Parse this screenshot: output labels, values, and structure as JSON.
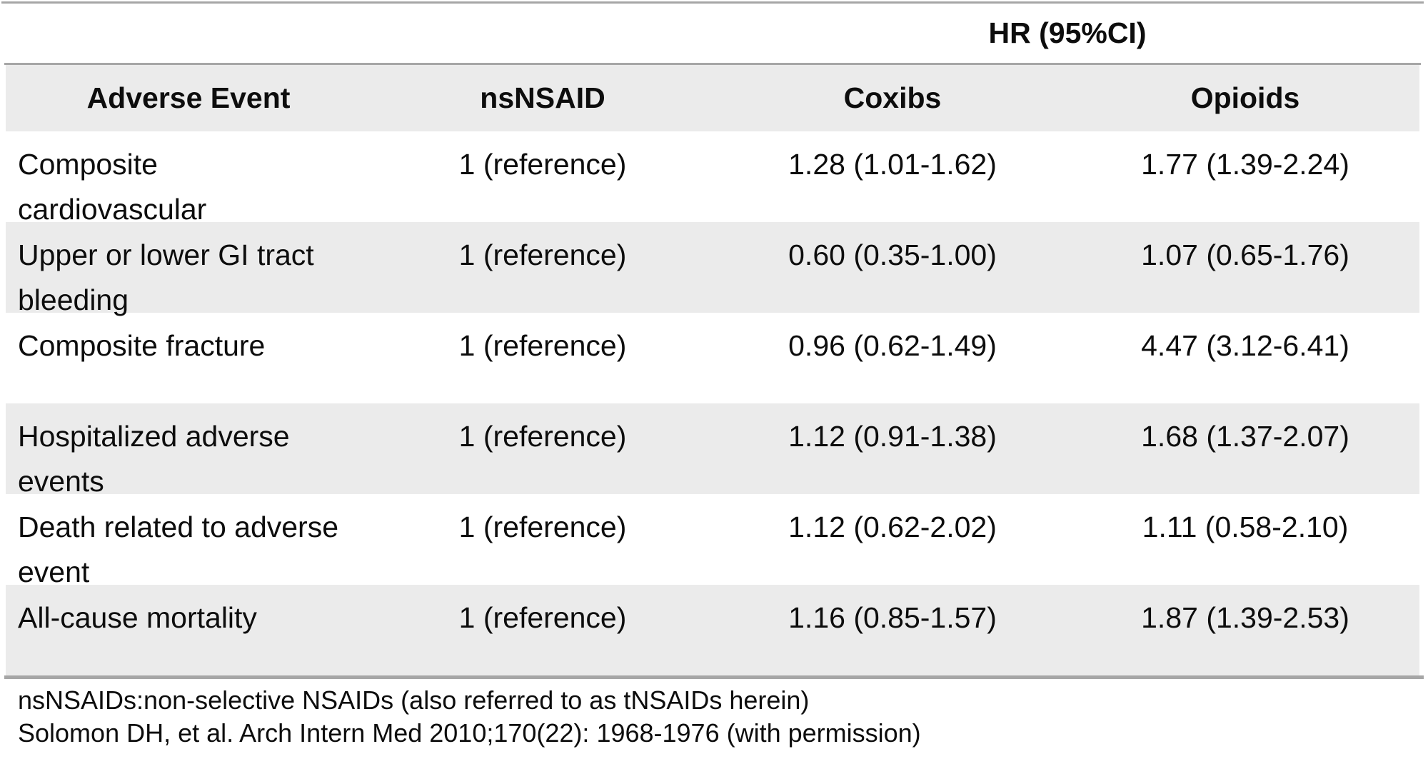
{
  "spanner": "HR (95%CI)",
  "table": {
    "headers": [
      "Adverse Event",
      "nsNSAID",
      "Coxibs",
      "Opioids"
    ],
    "rows": [
      {
        "event": "Composite\ncardiovascular",
        "nsnsaid": "1 (reference)",
        "coxibs": "1.28 (1.01-1.62)",
        "opioids": "1.77 (1.39-2.24)"
      },
      {
        "event": "Upper or lower GI tract\nbleeding",
        "nsnsaid": "1 (reference)",
        "coxibs": "0.60 (0.35-1.00)",
        "opioids": "1.07 (0.65-1.76)"
      },
      {
        "event": "Composite fracture",
        "nsnsaid": "1 (reference)",
        "coxibs": "0.96 (0.62-1.49)",
        "opioids": "4.47 (3.12-6.41)"
      },
      {
        "event": "Hospitalized adverse\nevents",
        "nsnsaid": "1 (reference)",
        "coxibs": "1.12 (0.91-1.38)",
        "opioids": "1.68 (1.37-2.07)"
      },
      {
        "event": "Death related to adverse\nevent",
        "nsnsaid": "1 (reference)",
        "coxibs": "1.12 (0.62-2.02)",
        "opioids": "1.11 (0.58-2.10)"
      },
      {
        "event": "All-cause mortality",
        "nsnsaid": "1 (reference)",
        "coxibs": "1.16 (0.85-1.57)",
        "opioids": "1.87 (1.39-2.53)"
      }
    ]
  },
  "footnotes": [
    "nsNSAIDs:non-selective NSAIDs (also referred to as tNSAIDs herein)",
    "Solomon DH, et al. Arch Intern Med 2010;170(22): 1968-1976 (with permission)"
  ],
  "colors": {
    "stripe": "#ebebeb",
    "rule": "#a6a6a6",
    "text": "#0d0d0d"
  }
}
